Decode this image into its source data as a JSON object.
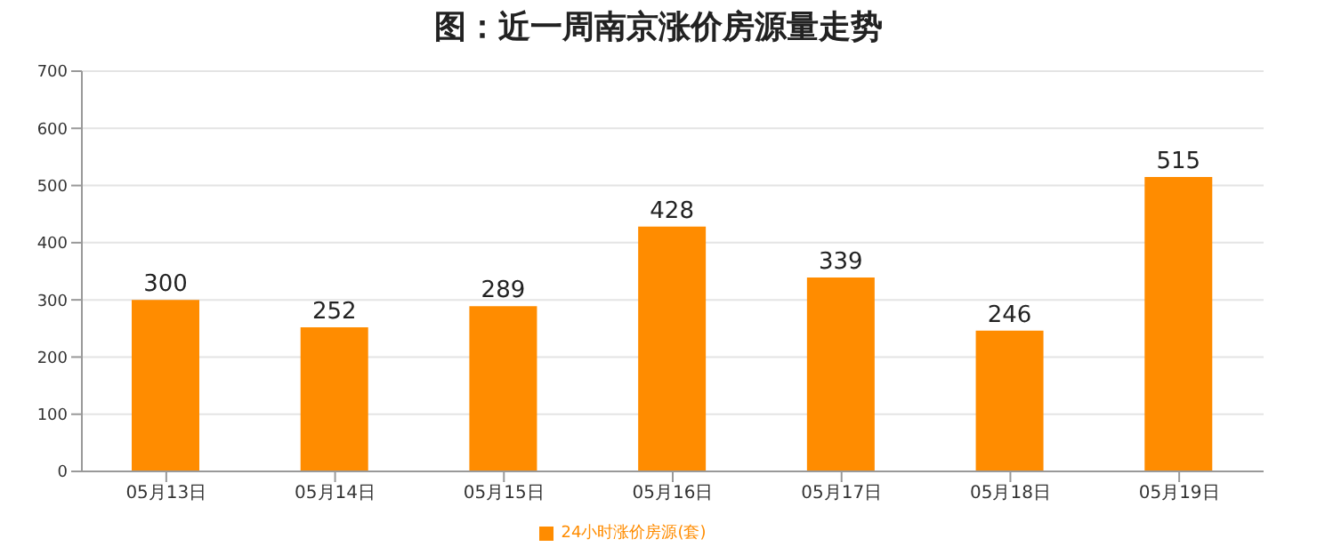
{
  "chart_data": {
    "type": "bar",
    "title": "图：近一周南京涨价房源量走势",
    "categories": [
      "05月13日",
      "05月14日",
      "05月15日",
      "05月16日",
      "05月17日",
      "05月18日",
      "05月19日"
    ],
    "series": [
      {
        "name": "24小时涨价房源(套)",
        "color": "#ff8c00",
        "values": [
          300,
          252,
          289,
          428,
          339,
          246,
          515
        ]
      }
    ],
    "ylim": [
      0,
      700
    ],
    "yticks": [
      0,
      100,
      200,
      300,
      400,
      500,
      600,
      700
    ],
    "grid": "y",
    "legend": "bottom",
    "data_labels": true
  }
}
